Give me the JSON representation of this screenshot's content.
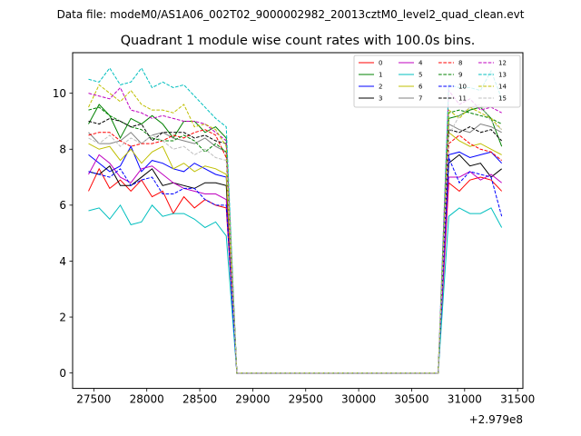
{
  "figure": {
    "suptitle": "Data file: modeM0/AS1A06_002T02_9000002982_20013cztM0_level2_quad_clean.evt"
  },
  "chart_data": {
    "type": "line",
    "title": "Quadrant 1 module wise count rates with 100.0s bins.",
    "xlabel": "",
    "ylabel": "",
    "x_offset_label": "+2.979e8",
    "xlim": [
      27300,
      31550
    ],
    "ylim": [
      -0.55,
      11.45
    ],
    "x_ticks": [
      27500,
      28000,
      28500,
      29000,
      29500,
      30000,
      30500,
      31000,
      31500
    ],
    "y_ticks": [
      0,
      2,
      4,
      6,
      8,
      10
    ],
    "x_gap_start": 28850,
    "x_gap_end": 30750,
    "x_seg1_start": 27450,
    "x_seg2_start": 30850,
    "bin": 100,
    "legend_position": "top-right",
    "series": [
      {
        "name": "0",
        "color": "#ff0000",
        "dash": "solid",
        "seg1": [
          6.5,
          7.3,
          6.6,
          6.9,
          6.5,
          6.9,
          6.3,
          6.5,
          5.7,
          6.3,
          5.9,
          6.2,
          6.0,
          5.9
        ],
        "seg2": [
          6.8,
          6.5,
          6.9,
          7.0,
          6.9,
          6.5
        ]
      },
      {
        "name": "1",
        "color": "#008000",
        "dash": "solid",
        "seg1": [
          8.9,
          9.6,
          9.2,
          8.4,
          9.1,
          8.9,
          9.2,
          8.9,
          8.4,
          9.0,
          9.0,
          8.6,
          8.8,
          8.4
        ],
        "seg2": [
          9.1,
          9.2,
          9.4,
          9.5,
          9.1,
          8.1
        ]
      },
      {
        "name": "2",
        "color": "#0000ff",
        "dash": "solid",
        "seg1": [
          7.8,
          7.5,
          7.2,
          7.4,
          8.1,
          7.2,
          7.6,
          7.5,
          7.3,
          7.2,
          7.5,
          7.3,
          7.1,
          7.0
        ],
        "seg2": [
          7.8,
          7.9,
          7.7,
          7.8,
          7.9,
          7.5
        ]
      },
      {
        "name": "3",
        "color": "#000000",
        "dash": "solid",
        "seg1": [
          7.2,
          7.1,
          7.4,
          6.7,
          6.7,
          7.0,
          7.3,
          6.7,
          6.8,
          6.7,
          6.6,
          6.8,
          6.8,
          6.7
        ],
        "seg2": [
          7.5,
          7.8,
          7.4,
          7.5,
          7.0,
          7.3
        ]
      },
      {
        "name": "4",
        "color": "#bf00bf",
        "dash": "solid",
        "seg1": [
          7.1,
          7.8,
          7.5,
          7.0,
          6.8,
          7.3,
          7.4,
          7.1,
          6.8,
          6.6,
          6.5,
          6.4,
          6.4,
          6.2
        ],
        "seg2": [
          7.0,
          7.0,
          7.2,
          6.9,
          7.1,
          6.8
        ]
      },
      {
        "name": "5",
        "color": "#00bfbf",
        "dash": "solid",
        "seg1": [
          5.8,
          5.9,
          5.5,
          6.0,
          5.3,
          5.4,
          6.0,
          5.6,
          5.7,
          5.7,
          5.5,
          5.2,
          5.4,
          4.9
        ],
        "seg2": [
          5.6,
          5.9,
          5.7,
          5.7,
          5.9,
          5.2
        ]
      },
      {
        "name": "6",
        "color": "#bfbf00",
        "dash": "solid",
        "seg1": [
          8.2,
          8.0,
          8.1,
          7.6,
          8.0,
          7.5,
          7.9,
          8.1,
          7.3,
          7.5,
          7.2,
          7.4,
          7.3,
          7.1
        ],
        "seg2": [
          8.6,
          8.3,
          8.1,
          8.2,
          8.0,
          7.8
        ]
      },
      {
        "name": "7",
        "color": "#808080",
        "dash": "solid",
        "seg1": [
          8.6,
          8.2,
          8.2,
          8.3,
          8.6,
          8.2,
          8.5,
          8.6,
          8.4,
          8.3,
          8.2,
          8.4,
          8.1,
          7.9
        ],
        "seg2": [
          8.9,
          8.7,
          8.6,
          8.9,
          8.8,
          8.6
        ]
      },
      {
        "name": "8",
        "color": "#ff0000",
        "dash": "dashed",
        "seg1": [
          8.5,
          8.6,
          8.6,
          8.3,
          8.1,
          8.2,
          8.2,
          8.3,
          8.5,
          8.4,
          8.6,
          8.7,
          8.5,
          7.7
        ],
        "seg2": [
          8.2,
          8.5,
          8.2,
          8.0,
          7.9,
          7.6
        ]
      },
      {
        "name": "9",
        "color": "#008000",
        "dash": "dashed",
        "seg1": [
          9.4,
          9.5,
          9.2,
          9.0,
          8.8,
          8.7,
          8.4,
          8.3,
          8.3,
          8.5,
          8.3,
          7.9,
          8.2,
          7.9
        ],
        "seg2": [
          9.3,
          9.4,
          9.3,
          9.2,
          9.1,
          8.9
        ]
      },
      {
        "name": "10",
        "color": "#0000ff",
        "dash": "dashed",
        "seg1": [
          7.2,
          7.1,
          7.0,
          7.3,
          6.7,
          6.9,
          7.0,
          6.4,
          6.4,
          6.6,
          6.6,
          6.2,
          6.0,
          6.0
        ],
        "seg2": [
          7.7,
          6.8,
          7.2,
          7.1,
          7.0,
          5.6
        ]
      },
      {
        "name": "11",
        "color": "#000000",
        "dash": "dashed",
        "seg1": [
          9.0,
          8.9,
          9.1,
          9.0,
          8.8,
          8.9,
          8.3,
          8.6,
          8.6,
          8.6,
          8.4,
          8.5,
          8.3,
          8.2
        ],
        "seg2": [
          8.7,
          8.6,
          8.8,
          8.6,
          8.7,
          8.3
        ]
      },
      {
        "name": "12",
        "color": "#bf00bf",
        "dash": "dashed",
        "seg1": [
          10.0,
          9.9,
          9.8,
          10.2,
          9.4,
          9.3,
          9.1,
          9.2,
          9.1,
          9.0,
          9.0,
          8.9,
          8.6,
          8.3
        ],
        "seg2": [
          10.1,
          9.6,
          9.8,
          9.4,
          9.5,
          9.3
        ]
      },
      {
        "name": "13",
        "color": "#00bfbf",
        "dash": "dashed",
        "seg1": [
          10.5,
          10.4,
          10.9,
          10.3,
          10.4,
          10.9,
          10.2,
          10.4,
          10.2,
          10.3,
          9.9,
          9.5,
          9.1,
          8.8
        ],
        "seg2": [
          10.3,
          10.2,
          10.2,
          10.1,
          10.8,
          9.8
        ]
      },
      {
        "name": "14",
        "color": "#bfbf00",
        "dash": "dashed",
        "seg1": [
          9.5,
          10.3,
          10.0,
          9.7,
          10.1,
          9.6,
          9.4,
          9.4,
          9.3,
          9.6,
          8.8,
          8.9,
          8.7,
          8.1
        ],
        "seg2": [
          9.4,
          9.1,
          9.5,
          9.3,
          9.1,
          8.7
        ]
      },
      {
        "name": "15",
        "color": "#bfbfbf",
        "dash": "dashed",
        "seg1": [
          8.4,
          8.2,
          8.5,
          8.1,
          8.4,
          8.2,
          8.5,
          8.3,
          8.0,
          8.1,
          7.8,
          8.0,
          7.7,
          7.6
        ],
        "seg2": [
          8.5,
          9.2,
          9.5,
          9.6,
          9.0,
          8.7
        ]
      }
    ]
  }
}
